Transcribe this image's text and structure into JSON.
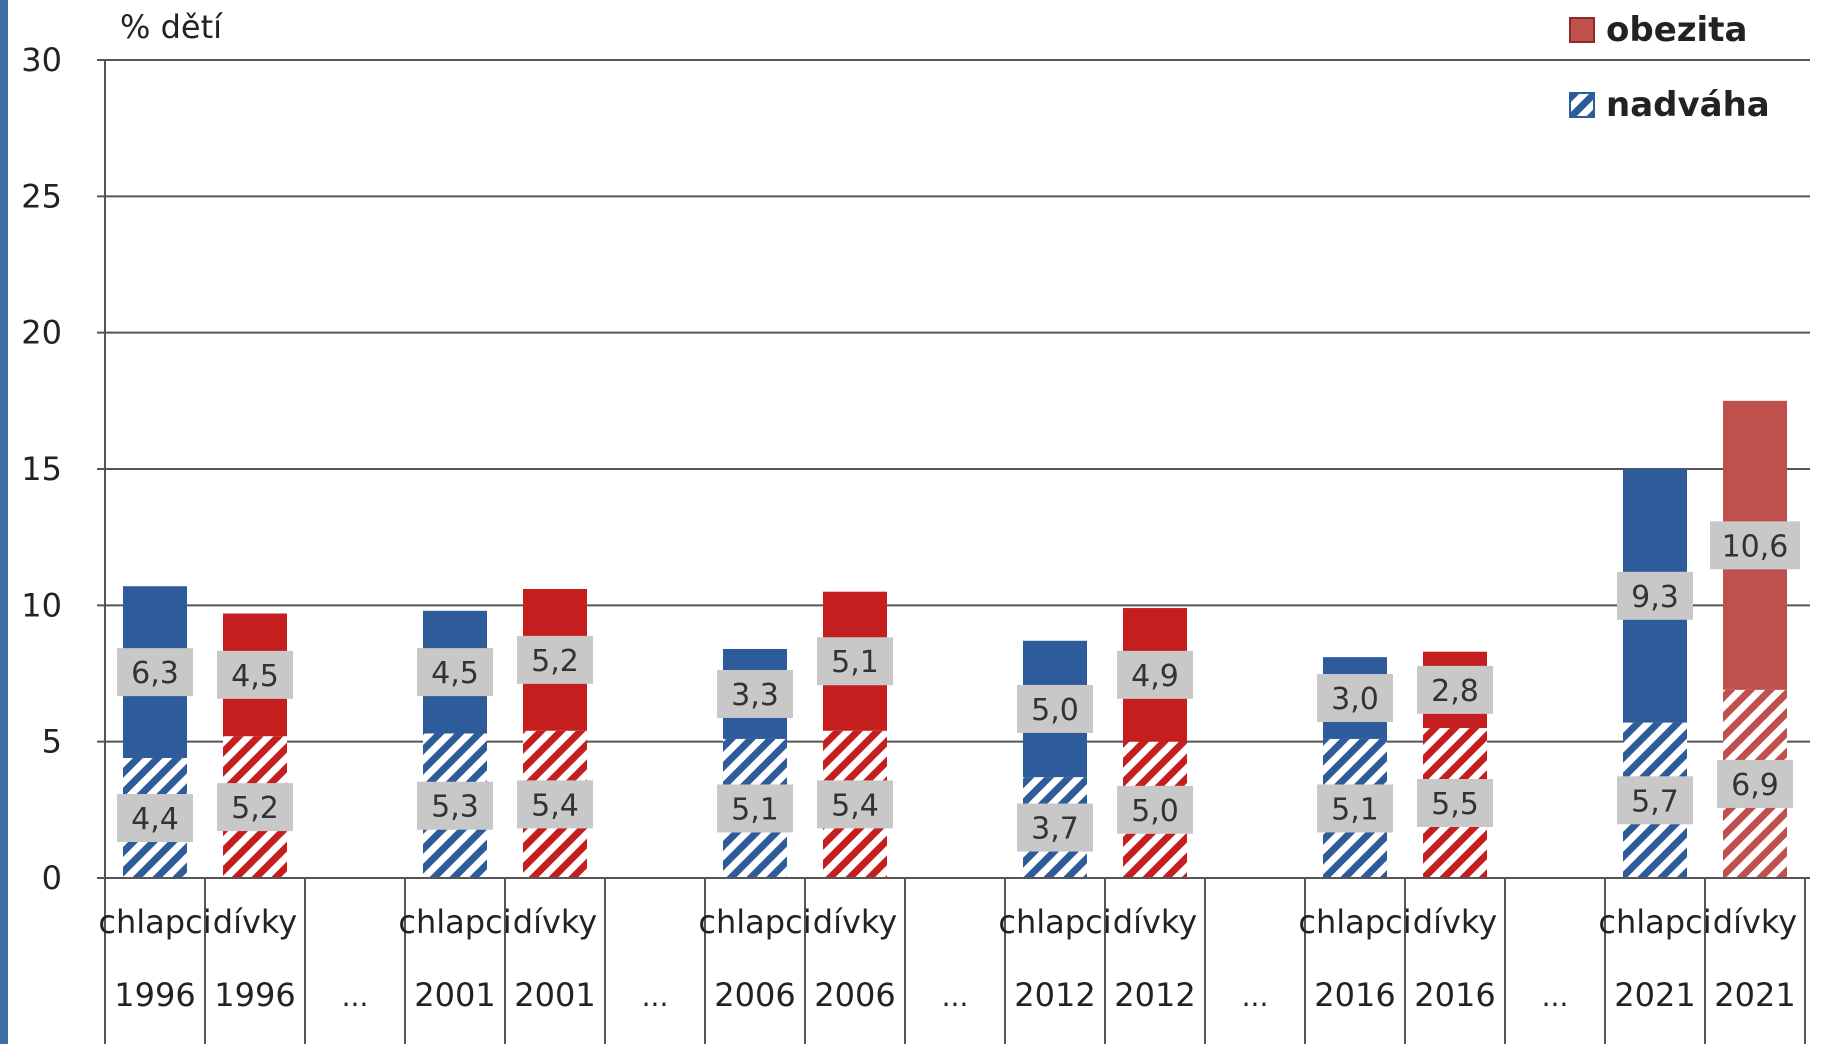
{
  "chart_data": {
    "type": "bar",
    "stacked": true,
    "title": "",
    "ylabel": "% dětí",
    "ylim": [
      0,
      30
    ],
    "yticks": [
      "0",
      "5",
      "10",
      "15",
      "20",
      "25",
      "30"
    ],
    "grid": true,
    "legend_position": "top-right",
    "separator_label": "...",
    "groups": [
      {
        "year": "1996",
        "bars": [
          {
            "sex": "chlapci",
            "label": "chlapci",
            "nadvaha": 4.4,
            "obezita": 6.3,
            "nadvaha_label": "4,4",
            "obezita_label": "6,3",
            "color": "#2e5b9a"
          },
          {
            "sex": "dívky",
            "label": "dívky",
            "nadvaha": 5.2,
            "obezita": 4.5,
            "nadvaha_label": "5,2",
            "obezita_label": "4,5",
            "color": "#c41e1e"
          }
        ]
      },
      {
        "year": "2001",
        "bars": [
          {
            "sex": "chlapci",
            "label": "chlapci",
            "nadvaha": 5.3,
            "obezita": 4.5,
            "nadvaha_label": "5,3",
            "obezita_label": "4,5",
            "color": "#2e5b9a"
          },
          {
            "sex": "dívky",
            "label": "dívky",
            "nadvaha": 5.4,
            "obezita": 5.2,
            "nadvaha_label": "5,4",
            "obezita_label": "5,2",
            "color": "#c41e1e"
          }
        ]
      },
      {
        "year": "2006",
        "bars": [
          {
            "sex": "chlapci",
            "label": "chlapci",
            "nadvaha": 5.1,
            "obezita": 3.3,
            "nadvaha_label": "5,1",
            "obezita_label": "3,3",
            "color": "#2e5b9a"
          },
          {
            "sex": "dívky",
            "label": "dívky",
            "nadvaha": 5.4,
            "obezita": 5.1,
            "nadvaha_label": "5,4",
            "obezita_label": "5,1",
            "color": "#c41e1e"
          }
        ]
      },
      {
        "year": "2012",
        "bars": [
          {
            "sex": "chlapci",
            "label": "chlapci",
            "nadvaha": 3.7,
            "obezita": 5.0,
            "nadvaha_label": "3,7",
            "obezita_label": "5,0",
            "color": "#2e5b9a"
          },
          {
            "sex": "dívky",
            "label": "dívky",
            "nadvaha": 5.0,
            "obezita": 4.9,
            "nadvaha_label": "5,0",
            "obezita_label": "4,9",
            "color": "#c41e1e"
          }
        ]
      },
      {
        "year": "2016",
        "bars": [
          {
            "sex": "chlapci",
            "label": "chlapci",
            "nadvaha": 5.1,
            "obezita": 3.0,
            "nadvaha_label": "5,1",
            "obezita_label": "3,0",
            "color": "#2e5b9a"
          },
          {
            "sex": "dívky",
            "label": "dívky",
            "nadvaha": 5.5,
            "obezita": 2.8,
            "nadvaha_label": "5,5",
            "obezita_label": "2,8",
            "color": "#c41e1e"
          }
        ]
      },
      {
        "year": "2021",
        "bars": [
          {
            "sex": "chlapci",
            "label": "chlapci",
            "nadvaha": 5.7,
            "obezita": 9.3,
            "nadvaha_label": "5,7",
            "obezita_label": "9,3",
            "color": "#2e5b9a"
          },
          {
            "sex": "dívky",
            "label": "dívky",
            "nadvaha": 6.9,
            "obezita": 10.6,
            "nadvaha_label": "6,9",
            "obezita_label": "10,6",
            "color": "#c0504d"
          }
        ]
      }
    ],
    "legend": [
      {
        "key": "obezita",
        "label": "obezita",
        "style": "solid",
        "color": "#c0504d"
      },
      {
        "key": "nadvaha",
        "label": "nadváha",
        "style": "hatched",
        "color": "#2e5b9a"
      }
    ],
    "colors": {
      "boy": "#2e5b9a",
      "girl": "#c41e1e",
      "label_box": "#c8c8c8",
      "gridline": "#555555",
      "axis": "#555555"
    }
  }
}
